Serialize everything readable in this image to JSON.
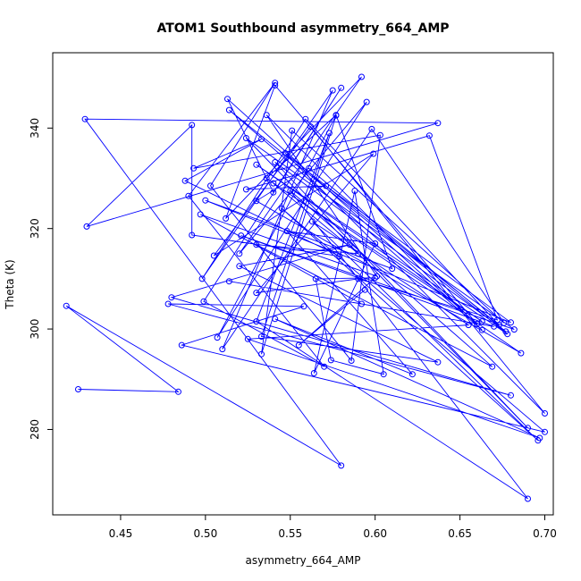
{
  "chart_data": {
    "type": "line",
    "title": "ATOM1 Southbound asymmetry_664_AMP",
    "xlabel": "asymmetry_664_AMP",
    "ylabel": "Theta (K)",
    "xlim": [
      0.41,
      0.705
    ],
    "ylim": [
      263,
      355
    ],
    "xticks": [
      0.45,
      0.5,
      0.55,
      0.6,
      0.65,
      0.7
    ],
    "xtick_labels": [
      "0.45",
      "0.50",
      "0.55",
      "0.60",
      "0.65",
      "0.70"
    ],
    "yticks": [
      280,
      300,
      320,
      340
    ],
    "ytick_labels": [
      "280",
      "300",
      "320",
      "340"
    ],
    "grid": false,
    "series_color": "#0000ff",
    "points": [
      [
        0.425,
        288.0
      ],
      [
        0.484,
        287.5
      ],
      [
        0.418,
        304.6
      ],
      [
        0.58,
        272.8
      ],
      [
        0.429,
        341.8
      ],
      [
        0.637,
        341.0
      ],
      [
        0.43,
        320.4
      ],
      [
        0.492,
        340.6
      ],
      [
        0.492,
        318.7
      ],
      [
        0.579,
        314.5
      ],
      [
        0.488,
        329.5
      ],
      [
        0.533,
        337.8
      ],
      [
        0.493,
        332.0
      ],
      [
        0.603,
        338.6
      ],
      [
        0.586,
        293.7
      ],
      [
        0.503,
        328.5
      ],
      [
        0.541,
        349.0
      ],
      [
        0.49,
        326.5
      ],
      [
        0.57,
        292.5
      ],
      [
        0.499,
        305.5
      ],
      [
        0.58,
        348.0
      ],
      [
        0.54,
        327.2
      ],
      [
        0.513,
        345.8
      ],
      [
        0.66,
        301.0
      ],
      [
        0.541,
        348.5
      ],
      [
        0.512,
        322.0
      ],
      [
        0.592,
        350.2
      ],
      [
        0.52,
        315.0
      ],
      [
        0.595,
        345.2
      ],
      [
        0.507,
        298.3
      ],
      [
        0.577,
        342.5
      ],
      [
        0.533,
        295.0
      ],
      [
        0.551,
        339.5
      ],
      [
        0.676,
        301.2
      ],
      [
        0.598,
        339.8
      ],
      [
        0.51,
        296.0
      ],
      [
        0.575,
        347.5
      ],
      [
        0.498,
        310.0
      ],
      [
        0.559,
        341.8
      ],
      [
        0.673,
        300.8
      ],
      [
        0.547,
        335.0
      ],
      [
        0.7,
        283.2
      ],
      [
        0.562,
        340.3
      ],
      [
        0.505,
        314.6
      ],
      [
        0.599,
        334.9
      ],
      [
        0.53,
        307.2
      ],
      [
        0.59,
        310.0
      ],
      [
        0.672,
        301.8
      ],
      [
        0.632,
        338.5
      ],
      [
        0.524,
        327.8
      ],
      [
        0.571,
        328.5
      ],
      [
        0.68,
        301.3
      ],
      [
        0.5,
        325.6
      ],
      [
        0.61,
        312.0
      ],
      [
        0.577,
        342.6
      ],
      [
        0.536,
        330.0
      ],
      [
        0.686,
        295.2
      ],
      [
        0.53,
        325.5
      ],
      [
        0.561,
        332.0
      ],
      [
        0.677,
        299.5
      ],
      [
        0.541,
        333.2
      ],
      [
        0.69,
        280.3
      ],
      [
        0.524,
        338.0
      ],
      [
        0.682,
        299.9
      ],
      [
        0.521,
        318.6
      ],
      [
        0.67,
        300.5
      ],
      [
        0.514,
        309.5
      ],
      [
        0.592,
        305.0
      ],
      [
        0.497,
        322.8
      ],
      [
        0.601,
        310.5
      ],
      [
        0.536,
        342.6
      ],
      [
        0.663,
        299.8
      ],
      [
        0.514,
        343.6
      ],
      [
        0.678,
        299.0
      ],
      [
        0.53,
        332.7
      ],
      [
        0.663,
        301.5
      ],
      [
        0.54,
        329.0
      ],
      [
        0.59,
        315.0
      ],
      [
        0.53,
        316.8
      ],
      [
        0.669,
        292.5
      ],
      [
        0.55,
        327.5
      ],
      [
        0.69,
        266.2
      ],
      [
        0.53,
        301.5
      ],
      [
        0.573,
        339.0
      ],
      [
        0.533,
        298.5
      ],
      [
        0.637,
        293.4
      ],
      [
        0.52,
        312.5
      ],
      [
        0.585,
        316.8
      ],
      [
        0.48,
        306.3
      ],
      [
        0.68,
        286.8
      ],
      [
        0.478,
        305.0
      ],
      [
        0.558,
        304.5
      ],
      [
        0.486,
        296.8
      ],
      [
        0.7,
        279.5
      ],
      [
        0.545,
        324.0
      ],
      [
        0.696,
        277.8
      ],
      [
        0.563,
        321.4
      ],
      [
        0.655,
        300.8
      ],
      [
        0.525,
        298.0
      ],
      [
        0.697,
        278.3
      ],
      [
        0.541,
        302.0
      ],
      [
        0.622,
        291.0
      ],
      [
        0.548,
        319.5
      ],
      [
        0.6,
        317.0
      ],
      [
        0.564,
        291.2
      ],
      [
        0.588,
        327.5
      ],
      [
        0.605,
        291.0
      ],
      [
        0.574,
        293.8
      ],
      [
        0.565,
        310.0
      ],
      [
        0.6,
        310.2
      ],
      [
        0.555,
        296.8
      ],
      [
        0.594,
        307.8
      ]
    ]
  }
}
